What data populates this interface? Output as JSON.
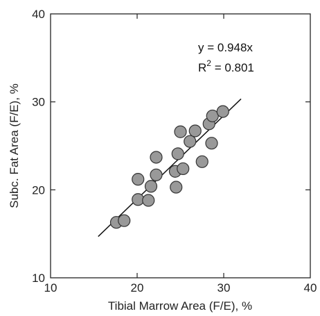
{
  "chart_data": {
    "type": "scatter",
    "xlabel": "Tibial Marrow Area (F/E), %",
    "ylabel": "Subc. Fat Area (F/E), %",
    "xlim": [
      10,
      40
    ],
    "ylim": [
      10,
      40
    ],
    "xticks": [
      "10",
      "20",
      "30",
      "40"
    ],
    "yticks": [
      "10",
      "20",
      "30",
      "40"
    ],
    "grid": false,
    "points": [
      {
        "x": 17.6,
        "y": 16.3
      },
      {
        "x": 18.5,
        "y": 16.5
      },
      {
        "x": 20.1,
        "y": 18.9
      },
      {
        "x": 20.1,
        "y": 21.2
      },
      {
        "x": 21.3,
        "y": 18.8
      },
      {
        "x": 21.6,
        "y": 20.4
      },
      {
        "x": 22.2,
        "y": 21.7
      },
      {
        "x": 22.2,
        "y": 23.7
      },
      {
        "x": 24.5,
        "y": 20.3
      },
      {
        "x": 24.4,
        "y": 22.1
      },
      {
        "x": 24.7,
        "y": 24.1
      },
      {
        "x": 25.3,
        "y": 22.4
      },
      {
        "x": 25.0,
        "y": 26.6
      },
      {
        "x": 26.1,
        "y": 25.5
      },
      {
        "x": 26.7,
        "y": 26.7
      },
      {
        "x": 27.5,
        "y": 23.2
      },
      {
        "x": 28.3,
        "y": 27.5
      },
      {
        "x": 28.7,
        "y": 28.4
      },
      {
        "x": 28.6,
        "y": 25.3
      },
      {
        "x": 29.9,
        "y": 28.9
      }
    ],
    "fit_line": {
      "slope": 0.948,
      "x_range": [
        15.5,
        32.0
      ]
    },
    "annotation": {
      "equation": "y = 0.948x",
      "r_prefix": "R",
      "r_sup": "2",
      "r_value": " = 0.801"
    }
  },
  "colors": {
    "marker_fill": "#999999",
    "marker_stroke": "#333333",
    "axis": "#222222",
    "line": "#111111"
  }
}
